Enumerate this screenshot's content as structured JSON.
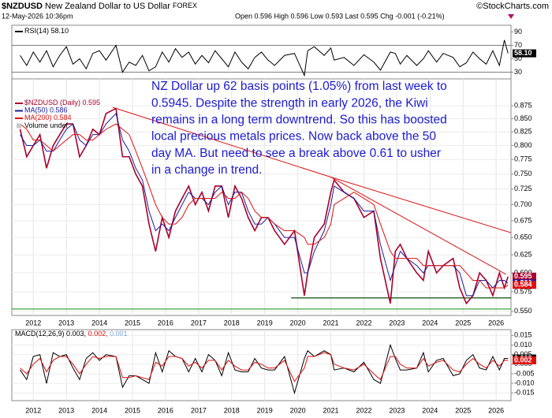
{
  "header": {
    "symbol": "$NZDUSD",
    "name": "New Zealand Dollar to US Dollar",
    "exchange": "FOREX",
    "copyright": "©StockCharts.com",
    "datetime": "12-May-2026 10:36pm",
    "quote": "Open 0.596 High 0.596 Low 0.593 Last 0.595 Chg -0.001 (-0.21%)"
  },
  "chart_data": [
    {
      "type": "line",
      "xlim": [
        2011.35,
        2026.45
      ],
      "ylim": [
        20,
        100
      ],
      "yticks": [
        30,
        50,
        70,
        90
      ],
      "reference_lines": [
        70,
        30
      ],
      "x": [
        2011.6,
        2011.8,
        2012.0,
        2012.2,
        2012.4,
        2012.6,
        2012.8,
        2013.0,
        2013.2,
        2013.4,
        2013.6,
        2013.8,
        2014.0,
        2014.2,
        2014.5,
        2014.7,
        2014.9,
        2015.1,
        2015.3,
        2015.5,
        2015.7,
        2015.9,
        2016.1,
        2016.3,
        2016.5,
        2016.7,
        2016.9,
        2017.1,
        2017.3,
        2017.5,
        2017.7,
        2017.9,
        2018.1,
        2018.3,
        2018.5,
        2018.7,
        2018.9,
        2019.1,
        2019.3,
        2019.6,
        2019.9,
        2020.2,
        2020.3,
        2020.5,
        2020.8,
        2021.0,
        2021.1,
        2021.4,
        2021.7,
        2022.0,
        2022.3,
        2022.5,
        2022.8,
        2022.95,
        2023.1,
        2023.3,
        2023.6,
        2023.8,
        2023.95,
        2024.2,
        2024.4,
        2024.7,
        2024.9,
        2025.1,
        2025.3,
        2025.5,
        2025.7,
        2025.9,
        2026.1,
        2026.25,
        2026.36
      ],
      "series": [
        {
          "name": "RSI(14)",
          "last_label": "58.10",
          "color": "#000000",
          "values": [
            55,
            40,
            60,
            45,
            62,
            38,
            55,
            68,
            42,
            50,
            35,
            58,
            62,
            48,
            70,
            30,
            45,
            40,
            55,
            32,
            38,
            60,
            45,
            65,
            52,
            60,
            42,
            55,
            44,
            62,
            50,
            38,
            60,
            45,
            35,
            52,
            60,
            48,
            40,
            55,
            58,
            25,
            62,
            68,
            55,
            66,
            48,
            52,
            40,
            56,
            45,
            33,
            60,
            58,
            42,
            55,
            40,
            50,
            62,
            45,
            58,
            52,
            38,
            44,
            60,
            50,
            42,
            62,
            40,
            78,
            58.1
          ]
        }
      ]
    },
    {
      "type": "line",
      "log_scale": true,
      "grid": true,
      "xlim": [
        2011.35,
        2026.45
      ],
      "ylim": [
        0.545,
        0.93
      ],
      "xticks": [
        2012,
        2013,
        2014,
        2015,
        2016,
        2017,
        2018,
        2019,
        2020,
        2021,
        2022,
        2023,
        2024,
        2025,
        2026
      ],
      "yticks": [
        0.875,
        {
          "value": 0.85,
          "label": "0.850"
        },
        0.825,
        {
          "value": 0.8,
          "label": "0.800"
        },
        0.775,
        {
          "value": 0.75,
          "label": "0.750"
        },
        0.725,
        {
          "value": 0.7,
          "label": "0.700"
        },
        0.675,
        {
          "value": 0.65,
          "label": "0.650"
        },
        0.625,
        {
          "value": 0.6,
          "label": "0.600"
        },
        0.575,
        {
          "value": 0.55,
          "label": "0.550"
        }
      ],
      "x": [
        2011.6,
        2011.8,
        2012.0,
        2012.2,
        2012.4,
        2012.6,
        2012.8,
        2013.0,
        2013.2,
        2013.4,
        2013.6,
        2013.8,
        2014.0,
        2014.2,
        2014.5,
        2014.7,
        2014.9,
        2015.1,
        2015.3,
        2015.5,
        2015.7,
        2015.9,
        2016.1,
        2016.3,
        2016.5,
        2016.7,
        2016.9,
        2017.1,
        2017.3,
        2017.5,
        2017.7,
        2017.9,
        2018.1,
        2018.3,
        2018.5,
        2018.7,
        2018.9,
        2019.1,
        2019.3,
        2019.6,
        2019.9,
        2020.2,
        2020.3,
        2020.5,
        2020.8,
        2021.0,
        2021.1,
        2021.4,
        2021.7,
        2022.0,
        2022.3,
        2022.5,
        2022.8,
        2022.95,
        2023.1,
        2023.3,
        2023.6,
        2023.8,
        2023.95,
        2024.2,
        2024.4,
        2024.7,
        2024.9,
        2025.1,
        2025.3,
        2025.5,
        2025.7,
        2025.9,
        2026.1,
        2026.25,
        2026.36
      ],
      "series": [
        {
          "name": "$NZDUSD (Daily)",
          "color": "#a8002c",
          "width": 1.6,
          "values": [
            0.83,
            0.78,
            0.8,
            0.82,
            0.76,
            0.8,
            0.82,
            0.84,
            0.84,
            0.78,
            0.8,
            0.83,
            0.82,
            0.86,
            0.87,
            0.78,
            0.78,
            0.75,
            0.73,
            0.67,
            0.63,
            0.68,
            0.65,
            0.69,
            0.71,
            0.73,
            0.7,
            0.72,
            0.69,
            0.73,
            0.73,
            0.68,
            0.73,
            0.71,
            0.68,
            0.66,
            0.68,
            0.68,
            0.66,
            0.64,
            0.66,
            0.57,
            0.6,
            0.65,
            0.67,
            0.72,
            0.74,
            0.72,
            0.71,
            0.68,
            0.69,
            0.62,
            0.56,
            0.63,
            0.64,
            0.62,
            0.6,
            0.59,
            0.63,
            0.6,
            0.61,
            0.62,
            0.58,
            0.56,
            0.57,
            0.6,
            0.59,
            0.57,
            0.6,
            0.58,
            0.595
          ]
        },
        {
          "name": "MA(50)",
          "color": "#1c1c9c",
          "width": 1,
          "values": [
            0.82,
            0.8,
            0.8,
            0.81,
            0.79,
            0.79,
            0.81,
            0.83,
            0.84,
            0.81,
            0.8,
            0.82,
            0.82,
            0.84,
            0.86,
            0.81,
            0.79,
            0.76,
            0.74,
            0.69,
            0.66,
            0.67,
            0.66,
            0.68,
            0.7,
            0.72,
            0.71,
            0.71,
            0.7,
            0.72,
            0.73,
            0.7,
            0.72,
            0.72,
            0.69,
            0.67,
            0.67,
            0.68,
            0.67,
            0.65,
            0.65,
            0.6,
            0.6,
            0.63,
            0.66,
            0.7,
            0.73,
            0.72,
            0.71,
            0.69,
            0.69,
            0.64,
            0.59,
            0.61,
            0.63,
            0.62,
            0.61,
            0.6,
            0.61,
            0.61,
            0.61,
            0.61,
            0.6,
            0.57,
            0.57,
            0.59,
            0.59,
            0.58,
            0.59,
            0.59,
            0.586
          ]
        },
        {
          "name": "MA(200)",
          "color": "#dd1111",
          "width": 1,
          "values": [
            0.84,
            0.83,
            0.81,
            0.81,
            0.8,
            0.79,
            0.8,
            0.81,
            0.82,
            0.82,
            0.81,
            0.81,
            0.82,
            0.83,
            0.84,
            0.83,
            0.82,
            0.79,
            0.76,
            0.73,
            0.7,
            0.68,
            0.67,
            0.67,
            0.68,
            0.7,
            0.71,
            0.71,
            0.71,
            0.71,
            0.72,
            0.71,
            0.71,
            0.72,
            0.71,
            0.69,
            0.68,
            0.68,
            0.67,
            0.66,
            0.66,
            0.65,
            0.64,
            0.64,
            0.65,
            0.67,
            0.7,
            0.71,
            0.72,
            0.71,
            0.7,
            0.67,
            0.63,
            0.62,
            0.62,
            0.62,
            0.62,
            0.61,
            0.61,
            0.61,
            0.61,
            0.61,
            0.61,
            0.6,
            0.59,
            0.59,
            0.58,
            0.58,
            0.58,
            0.58,
            0.584
          ]
        }
      ],
      "legend_extra": "Volume undef",
      "trendlines": [
        {
          "x": [
            2014.4,
            2021.0
          ],
          "y": [
            0.872,
            0.745
          ],
          "color": "#dd1111"
        },
        {
          "x": [
            2021.0,
            2026.45
          ],
          "y": [
            0.745,
            0.657
          ],
          "color": "#dd1111"
        },
        {
          "x": [
            2021.0,
            2026.3
          ],
          "y": [
            0.745,
            0.598
          ],
          "color": "#dd1111"
        }
      ],
      "hlines": [
        {
          "value": 0.567,
          "from": 2019.8,
          "color": "#0b4d0b"
        },
        {
          "value": 0.553,
          "from": 2011.35,
          "color": "#2a9a2a"
        }
      ],
      "annotation": [
        "NZ Dollar up 62 basis points (1.05%) from last week to",
        "0.5945. Despite the strength in early 2026, the Kiwi",
        "remains in a long term downtrend. So this has boosted",
        "local precious metals prices. Now back above the 50",
        "day MA. But need to see a break above 0.61 to usher",
        "in a change in trend."
      ]
    },
    {
      "type": "line",
      "grid": true,
      "xlim": [
        2011.35,
        2026.45
      ],
      "ylim": [
        -0.019,
        0.018
      ],
      "xticks": [
        2012,
        2013,
        2014,
        2015,
        2016,
        2017,
        2018,
        2019,
        2020,
        2021,
        2022,
        2023,
        2024,
        2025,
        2026
      ],
      "yticks": [
        0.015,
        {
          "value": 0.01,
          "label": "0.010"
        },
        0.005,
        {
          "value": 0,
          "label": "0.000"
        },
        -0.005,
        {
          "value": -0.01,
          "label": "-0.010"
        },
        -0.015
      ],
      "legend": [
        {
          "text": "MACD(12,26,9) 0.003,",
          "color": "#000000"
        },
        {
          "text": "0.002,",
          "color": "#dd1111"
        },
        {
          "text": "0.001",
          "color": "#7fa8d8"
        }
      ],
      "x": [
        2011.6,
        2011.8,
        2012.0,
        2012.2,
        2012.4,
        2012.6,
        2012.8,
        2013.0,
        2013.2,
        2013.4,
        2013.6,
        2013.8,
        2014.0,
        2014.2,
        2014.5,
        2014.7,
        2014.9,
        2015.1,
        2015.3,
        2015.5,
        2015.7,
        2015.9,
        2016.1,
        2016.3,
        2016.5,
        2016.7,
        2016.9,
        2017.1,
        2017.3,
        2017.5,
        2017.7,
        2017.9,
        2018.1,
        2018.3,
        2018.5,
        2018.7,
        2018.9,
        2019.1,
        2019.3,
        2019.6,
        2019.9,
        2020.2,
        2020.3,
        2020.5,
        2020.8,
        2021.0,
        2021.1,
        2021.4,
        2021.7,
        2022.0,
        2022.3,
        2022.5,
        2022.8,
        2022.95,
        2023.1,
        2023.3,
        2023.6,
        2023.8,
        2023.95,
        2024.2,
        2024.4,
        2024.7,
        2024.9,
        2025.1,
        2025.3,
        2025.5,
        2025.7,
        2025.9,
        2026.1,
        2026.25,
        2026.36
      ],
      "series": [
        {
          "color": "#000000",
          "values": [
            -0.003,
            -0.008,
            0.004,
            0.005,
            -0.01,
            0.006,
            0.004,
            0.005,
            -0.002,
            -0.008,
            0.003,
            0.006,
            0.002,
            0.005,
            0.004,
            -0.012,
            -0.006,
            -0.006,
            -0.008,
            -0.01,
            0.006,
            -0.004,
            0.007,
            0.004,
            0.003,
            -0.004,
            0.003,
            -0.004,
            0.005,
            0.002,
            -0.006,
            0.006,
            -0.003,
            -0.004,
            -0.004,
            0.003,
            -0.002,
            -0.003,
            -0.003,
            0.004,
            -0.015,
            0.003,
            0.007,
            0.004,
            0.007,
            0.005,
            -0.003,
            -0.002,
            -0.004,
            0.001,
            -0.008,
            -0.01,
            0.01,
            0.003,
            -0.003,
            -0.003,
            -0.002,
            0.006,
            -0.004,
            0.002,
            0.003,
            -0.006,
            -0.005,
            0.002,
            0.005,
            -0.002,
            -0.003,
            0.004,
            -0.003,
            0.003,
            0.003
          ]
        },
        {
          "color": "#dd1111",
          "values": [
            -0.002,
            -0.005,
            0.0,
            0.003,
            -0.004,
            0.002,
            0.004,
            0.004,
            0.0,
            -0.005,
            0.0,
            0.004,
            0.003,
            0.004,
            0.004,
            -0.007,
            -0.007,
            -0.006,
            -0.007,
            -0.008,
            0.001,
            -0.001,
            0.004,
            0.004,
            0.003,
            -0.001,
            0.001,
            -0.002,
            0.002,
            0.002,
            -0.003,
            0.002,
            -0.001,
            -0.003,
            -0.003,
            0.001,
            0.0,
            -0.002,
            -0.002,
            0.002,
            -0.009,
            -0.002,
            0.004,
            0.004,
            0.006,
            0.005,
            0.0,
            -0.002,
            -0.003,
            0.0,
            -0.005,
            -0.008,
            0.004,
            0.004,
            0.0,
            -0.002,
            -0.002,
            0.003,
            -0.001,
            0.001,
            0.002,
            -0.003,
            -0.004,
            0.0,
            0.003,
            0.0,
            -0.002,
            0.002,
            -0.001,
            0.002,
            0.002
          ]
        }
      ]
    }
  ]
}
